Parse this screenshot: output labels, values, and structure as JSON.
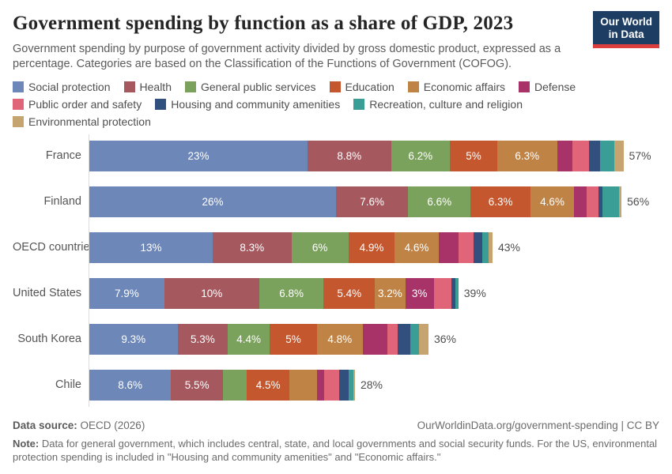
{
  "header": {
    "title": "Government spending by function as a share of GDP, 2023",
    "subtitle": "Government spending by purpose of government activity divided by gross domestic product, expressed as a percentage. Categories are based on the Classification of the Functions of Government (COFOG).",
    "logo_line1": "Our World",
    "logo_line2": "in Data"
  },
  "chart_data": {
    "type": "bar",
    "orientation": "horizontal",
    "stacked": true,
    "unit": "% of GDP",
    "xlim": [
      0,
      60
    ],
    "legend_position": "top",
    "functions": [
      {
        "name": "Social protection",
        "color": "#6d87b9"
      },
      {
        "name": "Health",
        "color": "#a5595f"
      },
      {
        "name": "General public services",
        "color": "#7ba25d"
      },
      {
        "name": "Education",
        "color": "#c4572e"
      },
      {
        "name": "Economic affairs",
        "color": "#bf8345"
      },
      {
        "name": "Defense",
        "color": "#a83368"
      },
      {
        "name": "Public order and safety",
        "color": "#e06578"
      },
      {
        "name": "Housing and community amenities",
        "color": "#31507d"
      },
      {
        "name": "Recreation, culture and religion",
        "color": "#3a9e96"
      },
      {
        "name": "Environmental protection",
        "color": "#c5a46f"
      }
    ],
    "rows": [
      {
        "label": "France",
        "total": "57%",
        "values": [
          23,
          8.8,
          6.2,
          5,
          6.3,
          1.6,
          1.8,
          1.1,
          1.5,
          1.0
        ],
        "segment_labels": [
          "23%",
          "8.8%",
          "6.2%",
          "5%",
          "6.3%",
          null,
          null,
          null,
          null,
          null
        ]
      },
      {
        "label": "Finland",
        "total": "56%",
        "values": [
          26,
          7.6,
          6.6,
          6.3,
          4.6,
          1.3,
          1.3,
          0.4,
          1.7,
          0.3
        ],
        "segment_labels": [
          "26%",
          "7.6%",
          "6.6%",
          "6.3%",
          "4.6%",
          null,
          null,
          null,
          null,
          null
        ]
      },
      {
        "label": "OECD countries",
        "total": "43%",
        "values": [
          13,
          8.3,
          6,
          4.9,
          4.6,
          2.1,
          1.6,
          0.9,
          0.7,
          0.4
        ],
        "segment_labels": [
          "13%",
          "8.3%",
          "6%",
          "4.9%",
          "4.6%",
          null,
          null,
          null,
          null,
          null
        ]
      },
      {
        "label": "United States",
        "total": "39%",
        "values": [
          7.9,
          10,
          6.8,
          5.4,
          3.2,
          3,
          1.9,
          0.35,
          0.35,
          0
        ],
        "segment_labels": [
          "7.9%",
          "10%",
          "6.8%",
          "5.4%",
          "3.2%",
          "3%",
          null,
          null,
          null,
          null
        ]
      },
      {
        "label": "South Korea",
        "total": "36%",
        "values": [
          9.3,
          5.3,
          4.4,
          5,
          4.8,
          2.6,
          1.1,
          1.3,
          0.95,
          1.0
        ],
        "segment_labels": [
          "9.3%",
          "5.3%",
          "4.4%",
          "5%",
          "4.8%",
          null,
          null,
          null,
          null,
          null
        ]
      },
      {
        "label": "Chile",
        "total": "28%",
        "values": [
          8.6,
          5.5,
          2.5,
          4.5,
          2.9,
          0.75,
          1.6,
          0.95,
          0.5,
          0.2
        ],
        "segment_labels": [
          "8.6%",
          "5.5%",
          null,
          "4.5%",
          null,
          null,
          null,
          null,
          null,
          null
        ]
      }
    ]
  },
  "footer": {
    "source_prefix": "Data source:",
    "source_text": " OECD (2026)",
    "link_text": "OurWorldinData.org/government-spending | CC BY",
    "note_prefix": "Note:",
    "note_text": " Data for general government, which includes central, state, and local governments and social security funds. For the US, environmental protection spending is included in \"Housing and community amenities\" and \"Economic affairs.\""
  }
}
